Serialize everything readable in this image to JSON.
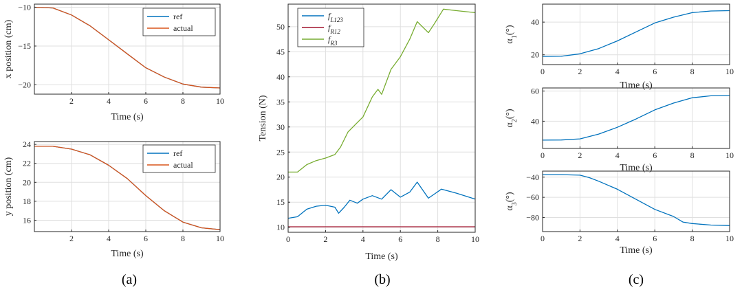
{
  "captions": [
    "(a)",
    "(b)",
    "(c)"
  ],
  "chart_data": [
    {
      "id": "a1",
      "type": "line",
      "xlabel": "Time (s)",
      "ylabel": "x position (cm)",
      "xlim": [
        0,
        10
      ],
      "ylim": [
        -21.2,
        -9.6
      ],
      "xticks": [
        2,
        4,
        6,
        8,
        10
      ],
      "xtick_labels": [
        "2",
        "4",
        "6",
        "8",
        "10"
      ],
      "yticks": [
        -20,
        -15,
        -10
      ],
      "ytick_labels": [
        "−20",
        "−15",
        "−10"
      ],
      "grid": true,
      "legend_position": "top-right",
      "series": [
        {
          "name": "ref",
          "color": "#0072BD",
          "x": [
            0,
            1,
            2,
            3,
            4,
            5,
            6,
            7,
            8,
            9,
            10
          ],
          "y": [
            -10.0,
            -10.1,
            -11.0,
            -12.4,
            -14.2,
            -16.0,
            -17.8,
            -19.0,
            -19.9,
            -20.3,
            -20.4
          ]
        },
        {
          "name": "actual",
          "color": "#D95319",
          "x": [
            0,
            1,
            2,
            3,
            4,
            5,
            6,
            7,
            8,
            9,
            10
          ],
          "y": [
            -10.0,
            -10.1,
            -11.0,
            -12.4,
            -14.2,
            -16.0,
            -17.8,
            -19.0,
            -19.9,
            -20.3,
            -20.4
          ]
        }
      ]
    },
    {
      "id": "a2",
      "type": "line",
      "xlabel": "Time (s)",
      "ylabel": "y position (cm)",
      "xlim": [
        0,
        10
      ],
      "ylim": [
        14.8,
        24.3
      ],
      "xticks": [
        2,
        4,
        6,
        8,
        10
      ],
      "xtick_labels": [
        "2",
        "4",
        "6",
        "8",
        "10"
      ],
      "yticks": [
        16,
        18,
        20,
        22,
        24
      ],
      "ytick_labels": [
        "16",
        "18",
        "20",
        "22",
        "24"
      ],
      "grid": true,
      "legend_position": "top-right",
      "series": [
        {
          "name": "ref",
          "color": "#0072BD",
          "x": [
            0,
            1,
            2,
            3,
            4,
            5,
            6,
            7,
            8,
            9,
            10
          ],
          "y": [
            23.8,
            23.8,
            23.5,
            22.9,
            21.8,
            20.4,
            18.6,
            17.0,
            15.8,
            15.2,
            15.0
          ]
        },
        {
          "name": "actual",
          "color": "#D95319",
          "x": [
            0,
            1,
            2,
            3,
            4,
            5,
            6,
            7,
            8,
            9,
            10
          ],
          "y": [
            23.8,
            23.8,
            23.5,
            22.9,
            21.8,
            20.4,
            18.6,
            17.0,
            15.8,
            15.2,
            15.0
          ]
        }
      ]
    },
    {
      "id": "b",
      "type": "line",
      "xlabel": "Time (s)",
      "ylabel": "Tension (N)",
      "xlim": [
        0,
        10
      ],
      "ylim": [
        9,
        54.5
      ],
      "xticks": [
        0,
        2,
        4,
        6,
        8,
        10
      ],
      "xtick_labels": [
        "0",
        "2",
        "4",
        "6",
        "8",
        "10"
      ],
      "yticks": [
        10,
        15,
        20,
        25,
        30,
        35,
        40,
        45,
        50
      ],
      "ytick_labels": [
        "10",
        "15",
        "20",
        "25",
        "30",
        "35",
        "40",
        "45",
        "50"
      ],
      "grid": true,
      "legend_position": "top-left",
      "series": [
        {
          "name": "f",
          "subscript": "L123",
          "color": "#0072BD",
          "x": [
            0,
            0.5,
            1,
            1.5,
            2,
            2.5,
            2.7,
            3,
            3.3,
            3.7,
            4,
            4.5,
            5,
            5.5,
            6,
            6.5,
            6.9,
            7.5,
            8.2,
            9,
            10
          ],
          "y": [
            11.8,
            12.1,
            13.6,
            14.2,
            14.4,
            14.0,
            12.8,
            14.0,
            15.4,
            14.8,
            15.6,
            16.3,
            15.6,
            17.5,
            16.0,
            17.0,
            19.0,
            15.8,
            17.6,
            16.8,
            15.6
          ]
        },
        {
          "name": "f",
          "subscript": "R12",
          "color": "#A2142F",
          "x": [
            0,
            10
          ],
          "y": [
            10.1,
            10.1
          ]
        },
        {
          "name": "f",
          "subscript": "R3",
          "color": "#77AC30",
          "x": [
            0,
            0.5,
            1,
            1.5,
            2,
            2.5,
            2.8,
            3.2,
            3.6,
            4,
            4.5,
            4.8,
            5,
            5.5,
            6,
            6.5,
            6.9,
            7.5,
            7.8,
            8.3,
            9,
            10
          ],
          "y": [
            21.0,
            21.0,
            22.5,
            23.3,
            23.8,
            24.5,
            26.0,
            29.0,
            30.5,
            32.0,
            36.0,
            37.5,
            36.5,
            41.5,
            44.0,
            47.5,
            51.0,
            48.8,
            50.5,
            53.5,
            53.2,
            52.8
          ]
        }
      ]
    },
    {
      "id": "c1",
      "type": "line",
      "xlabel": "Time (s)",
      "ylabel": "α",
      "ylabel_sub": "1",
      "ylabel_suffix": "(°)",
      "xlim": [
        0,
        10
      ],
      "ylim": [
        14,
        51
      ],
      "xticks": [
        0,
        2,
        4,
        6,
        8,
        10
      ],
      "xtick_labels": [
        "0",
        "2",
        "4",
        "6",
        "8",
        "10"
      ],
      "yticks": [
        20,
        40
      ],
      "ytick_labels": [
        "20",
        "40"
      ],
      "grid": true,
      "series": [
        {
          "color": "#0072BD",
          "x": [
            0,
            1,
            2,
            3,
            4,
            5,
            6,
            7,
            8,
            9,
            10
          ],
          "y": [
            19.0,
            19.1,
            20.6,
            23.8,
            28.5,
            34.0,
            39.5,
            43.0,
            45.8,
            46.8,
            47.0
          ]
        }
      ]
    },
    {
      "id": "c2",
      "type": "line",
      "xlabel": "Time (s)",
      "ylabel": "α",
      "ylabel_sub": "2",
      "ylabel_suffix": "(°)",
      "xlim": [
        0,
        10
      ],
      "ylim": [
        22,
        62
      ],
      "xticks": [
        0,
        2,
        4,
        6,
        8,
        10
      ],
      "xtick_labels": [
        "0",
        "2",
        "4",
        "6",
        "8",
        "10"
      ],
      "yticks": [
        40,
        60
      ],
      "ytick_labels": [
        "40",
        "60"
      ],
      "grid": true,
      "series": [
        {
          "color": "#0072BD",
          "x": [
            0,
            1,
            2,
            3,
            4,
            5,
            6,
            7,
            8,
            9,
            10
          ],
          "y": [
            27.5,
            27.6,
            28.3,
            31.5,
            36.0,
            41.5,
            47.5,
            52.0,
            55.5,
            56.8,
            57.0
          ]
        }
      ]
    },
    {
      "id": "c3",
      "type": "line",
      "xlabel": "Time (s)",
      "ylabel": "α",
      "ylabel_sub": "3",
      "ylabel_suffix": "(°)",
      "xlim": [
        0,
        10
      ],
      "ylim": [
        -94,
        -34
      ],
      "xticks": [
        0,
        2,
        4,
        6,
        8,
        10
      ],
      "xtick_labels": [
        "0",
        "2",
        "4",
        "6",
        "8",
        "10"
      ],
      "yticks": [
        -80,
        -60,
        -40
      ],
      "ytick_labels": [
        "−80",
        "−60",
        "−40"
      ],
      "grid": true,
      "series": [
        {
          "color": "#0072BD",
          "x": [
            0,
            1,
            2,
            2.5,
            3,
            4,
            5,
            6,
            7,
            7.5,
            8,
            9,
            10
          ],
          "y": [
            -37.5,
            -37.5,
            -38.0,
            -40.5,
            -44.0,
            -52.0,
            -62.0,
            -72.0,
            -79.0,
            -84.5,
            -86.0,
            -87.5,
            -88.0
          ]
        }
      ]
    }
  ]
}
